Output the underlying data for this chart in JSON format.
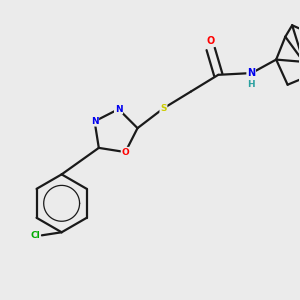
{
  "bg_color": "#ebebeb",
  "bond_color": "#1a1a1a",
  "atom_colors": {
    "O": "#ff0000",
    "N": "#0000ee",
    "S": "#cccc00",
    "Cl": "#00aa00",
    "C": "#1a1a1a",
    "H": "#2aa0a0"
  },
  "lw": 1.6
}
